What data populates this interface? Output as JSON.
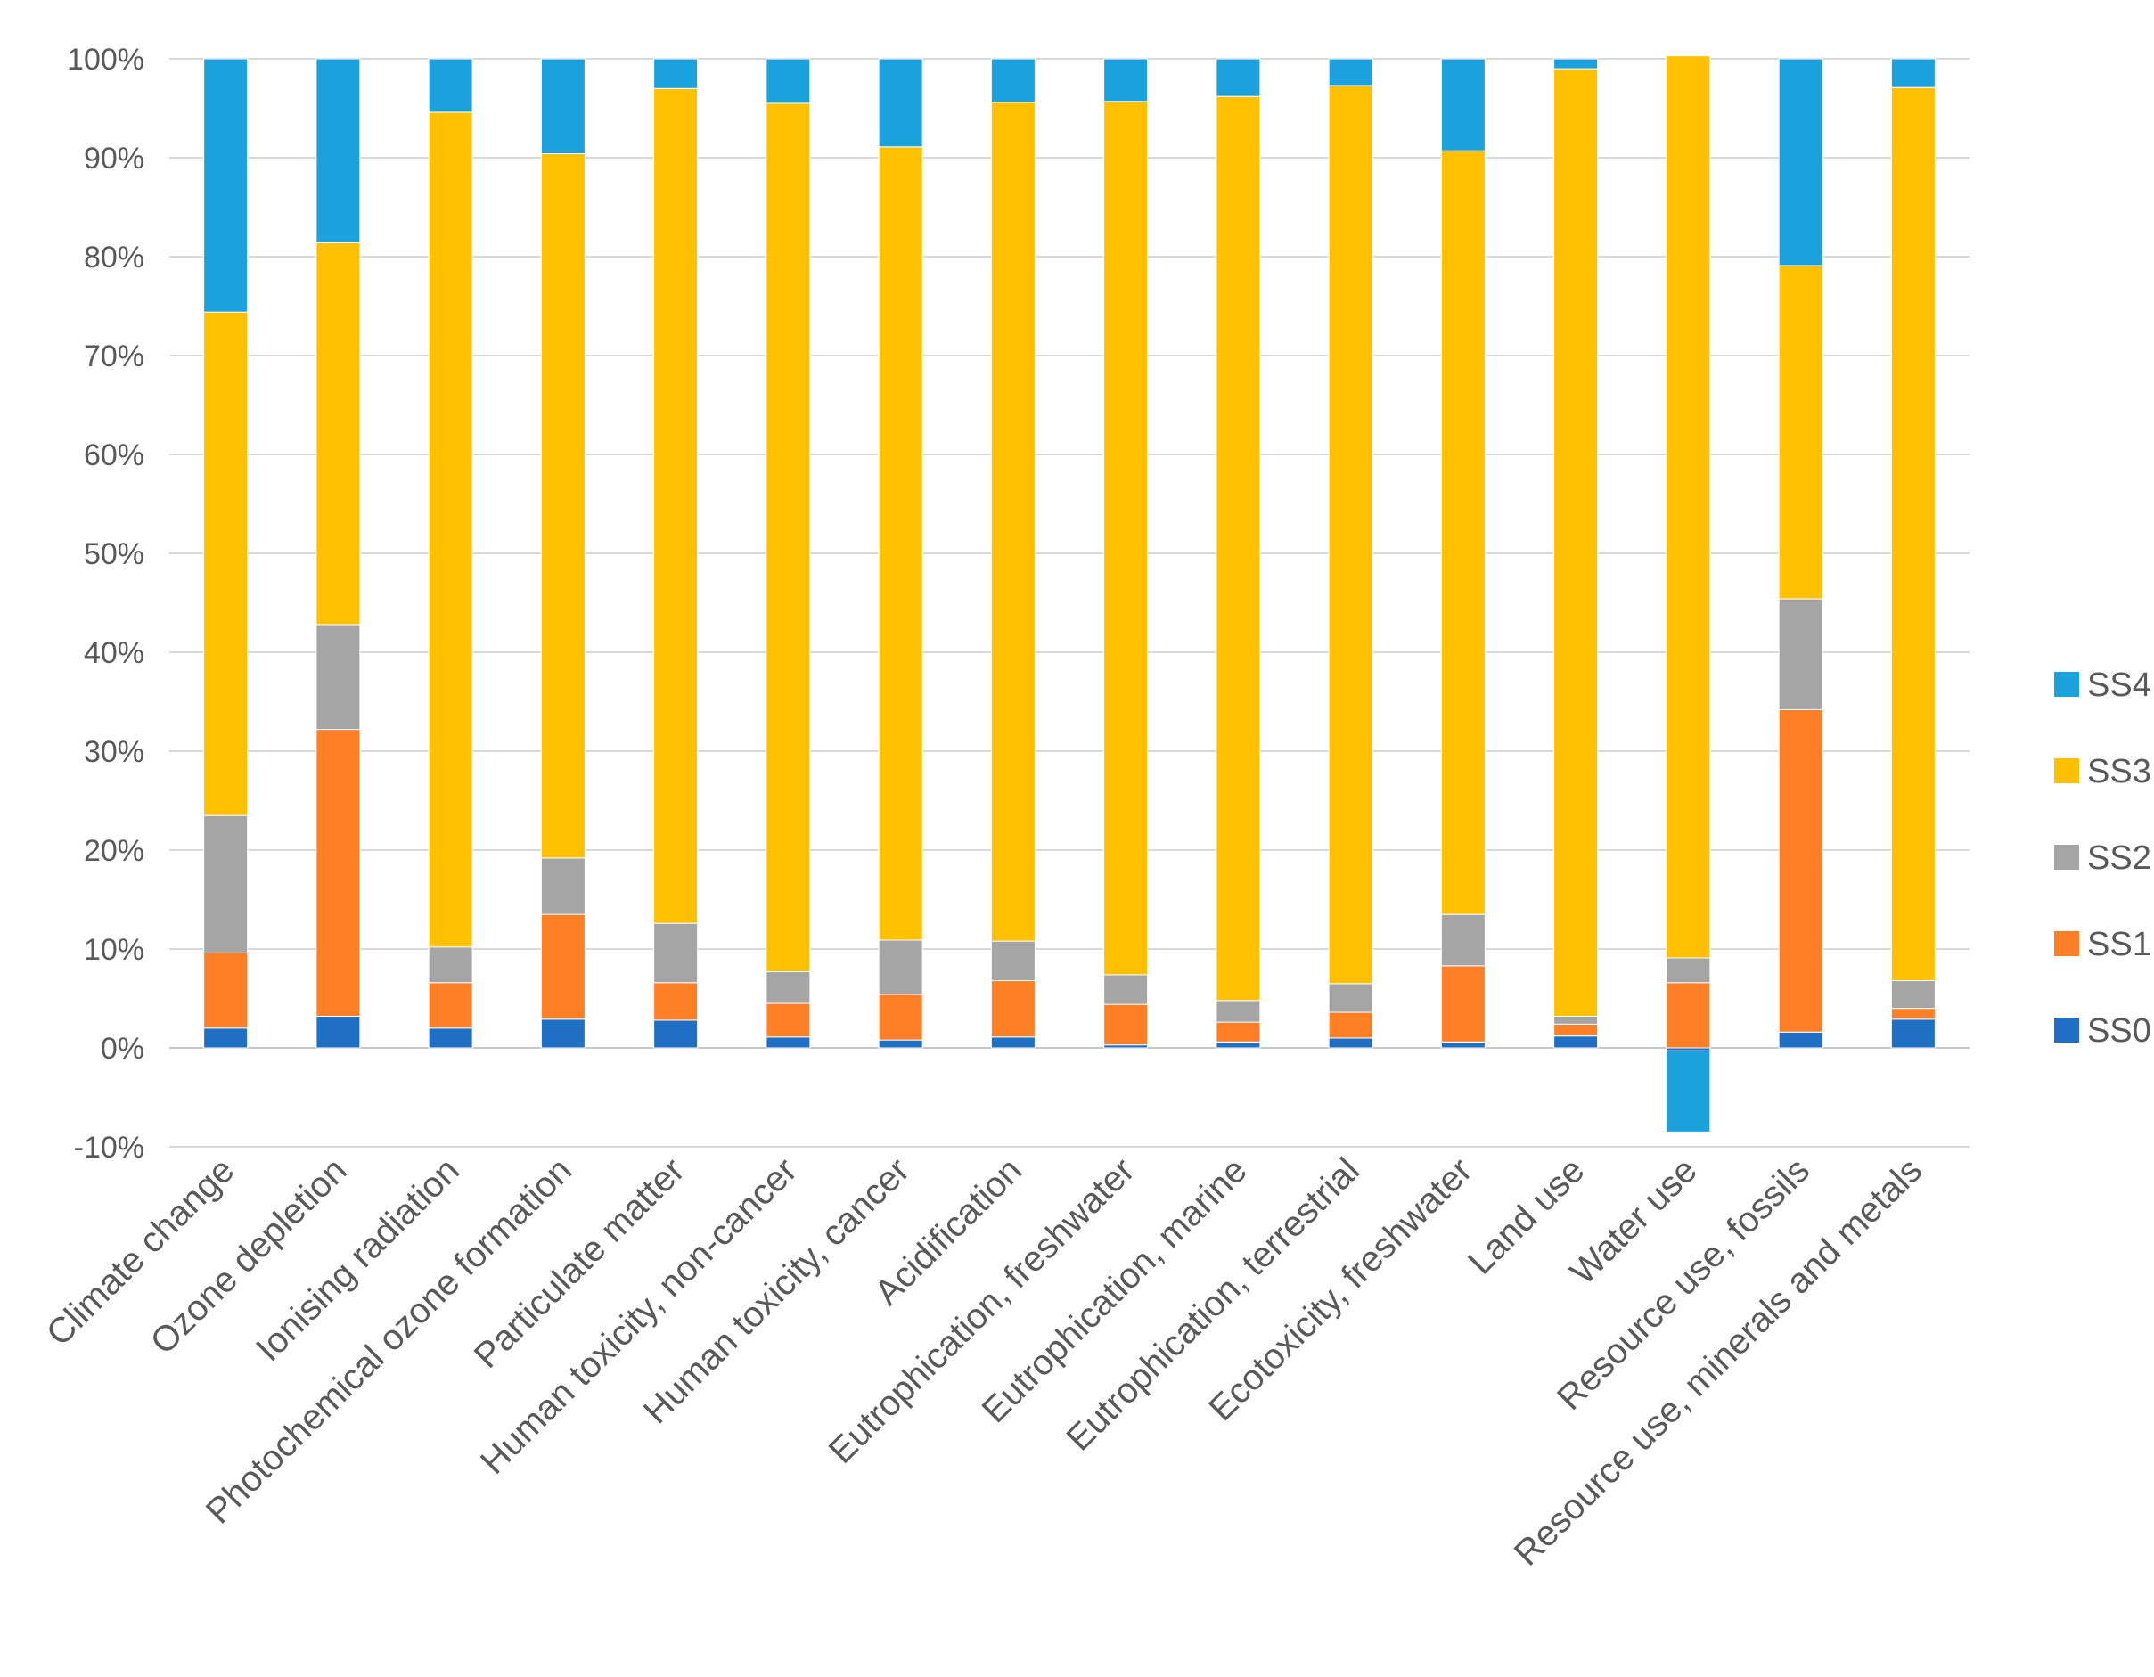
{
  "chart_data": {
    "type": "bar",
    "stacked": true,
    "ylim": [
      -10,
      100
    ],
    "yticks": [
      -10,
      0,
      10,
      20,
      30,
      40,
      50,
      60,
      70,
      80,
      90,
      100
    ],
    "ytick_labels": [
      "-10%",
      "0%",
      "10%",
      "20%",
      "30%",
      "40%",
      "50%",
      "60%",
      "70%",
      "80%",
      "90%",
      "100%"
    ],
    "grid": true,
    "legend_position": "right",
    "categories": [
      "Climate change",
      "Ozone depletion",
      "Ionising radiation",
      "Photochemical ozone formation",
      "Particulate matter",
      "Human toxicity, non-cancer",
      "Human toxicity, cancer",
      "Acidification",
      "Eutrophication, freshwater",
      "Eutrophication, marine",
      "Eutrophication, terrestrial",
      "Ecotoxicity, freshwater",
      "Land use",
      "Water use",
      "Resource use, fossils",
      "Resource use, minerals and metals"
    ],
    "series": [
      {
        "name": "SS0",
        "color": "#1f6fc5",
        "values": [
          2.0,
          3.2,
          2.0,
          2.9,
          2.8,
          1.1,
          0.8,
          1.1,
          0.3,
          0.6,
          1.0,
          0.6,
          1.2,
          -0.3,
          1.6,
          2.9
        ]
      },
      {
        "name": "SS1",
        "color": "#ff7f27",
        "values": [
          7.6,
          29.0,
          4.6,
          10.6,
          3.8,
          3.4,
          4.6,
          5.7,
          4.1,
          2.0,
          2.6,
          7.7,
          1.2,
          6.6,
          32.6,
          1.1
        ]
      },
      {
        "name": "SS2",
        "color": "#a5a5a5",
        "values": [
          13.9,
          10.6,
          3.6,
          5.7,
          6.0,
          3.2,
          5.5,
          4.0,
          3.0,
          2.2,
          2.9,
          5.2,
          0.8,
          2.5,
          11.2,
          2.8
        ]
      },
      {
        "name": "SS3",
        "color": "#ffc000",
        "values": [
          50.9,
          38.6,
          84.4,
          71.2,
          84.4,
          87.8,
          80.2,
          84.8,
          88.3,
          91.4,
          90.8,
          77.2,
          95.8,
          91.2,
          33.7,
          90.3
        ]
      },
      {
        "name": "SS4",
        "color": "#1ba1db",
        "values": [
          25.6,
          18.6,
          5.4,
          9.6,
          3.0,
          4.5,
          8.9,
          4.4,
          4.3,
          3.8,
          2.7,
          9.3,
          1.0,
          -8.2,
          20.9,
          2.9
        ]
      }
    ],
    "legend_order": [
      "SS4",
      "SS3",
      "SS2",
      "SS1",
      "SS0"
    ]
  }
}
